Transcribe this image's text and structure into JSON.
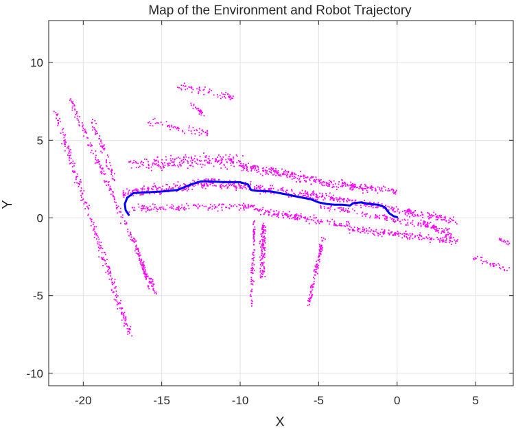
{
  "chart_data": {
    "type": "scatter",
    "title": "Map of the Environment and Robot Trajectory",
    "xlabel": "X",
    "ylabel": "Y",
    "xlim": [
      -22.2,
      7.4
    ],
    "ylim": [
      -10.8,
      12.7
    ],
    "grid": true,
    "legend": "none",
    "xticks": [
      -20,
      -15,
      -10,
      -5,
      0,
      5
    ],
    "yticks": [
      -10,
      -5,
      0,
      5,
      10
    ],
    "xtick_labels": [
      "-20",
      "-15",
      "-10",
      "-5",
      "0",
      "5"
    ],
    "ytick_labels": [
      "-10",
      "-5",
      "0",
      "5",
      "10"
    ],
    "colors": {
      "map_points": "#ff00ff",
      "trajectory": "#0000ff",
      "grid": "#e3e3e3",
      "axes": "#262626"
    },
    "map_segments": [
      {
        "from": [
          -21.8,
          6.8
        ],
        "to": [
          -17.0,
          -7.6
        ],
        "spread": 0.45,
        "count": 260
      },
      {
        "from": [
          -20.8,
          7.6
        ],
        "to": [
          -15.3,
          -5.0
        ],
        "spread": 0.35,
        "count": 200
      },
      {
        "from": [
          -19.5,
          6.5
        ],
        "to": [
          -18.0,
          2.5
        ],
        "spread": 0.4,
        "count": 60
      },
      {
        "from": [
          -16.8,
          -1.3
        ],
        "to": [
          -15.8,
          -4.5
        ],
        "spread": 0.25,
        "count": 60
      },
      {
        "from": [
          -17.5,
          1.6
        ],
        "to": [
          -12.0,
          2.2
        ],
        "spread": 0.5,
        "count": 180
      },
      {
        "from": [
          -12.0,
          2.3
        ],
        "to": [
          -4.0,
          1.3
        ],
        "spread": 0.45,
        "count": 240
      },
      {
        "from": [
          -4.0,
          1.3
        ],
        "to": [
          3.8,
          -0.2
        ],
        "spread": 0.35,
        "count": 220
      },
      {
        "from": [
          -17.0,
          3.5
        ],
        "to": [
          -10.0,
          3.7
        ],
        "spread": 0.6,
        "count": 220
      },
      {
        "from": [
          -10.0,
          3.4
        ],
        "to": [
          -5.0,
          2.4
        ],
        "spread": 0.45,
        "count": 180
      },
      {
        "from": [
          -5.0,
          2.3
        ],
        "to": [
          0.0,
          1.7
        ],
        "spread": 0.4,
        "count": 150
      },
      {
        "from": [
          -17.0,
          0.6
        ],
        "to": [
          -9.0,
          0.8
        ],
        "spread": 0.35,
        "count": 150
      },
      {
        "from": [
          -9.0,
          0.5
        ],
        "to": [
          -3.0,
          -0.5
        ],
        "spread": 0.35,
        "count": 160
      },
      {
        "from": [
          -3.0,
          -0.7
        ],
        "to": [
          3.8,
          -1.5
        ],
        "spread": 0.35,
        "count": 180
      },
      {
        "from": [
          -5.0,
          0.8
        ],
        "to": [
          3.5,
          -0.8
        ],
        "spread": 0.3,
        "count": 140
      },
      {
        "from": [
          -8.5,
          -0.3
        ],
        "to": [
          -8.6,
          -3.8
        ],
        "spread": 0.4,
        "count": 120
      },
      {
        "from": [
          -9.1,
          -0.2
        ],
        "to": [
          -9.3,
          -5.8
        ],
        "spread": 0.25,
        "count": 80
      },
      {
        "from": [
          -4.7,
          -1.2
        ],
        "to": [
          -5.7,
          -5.8
        ],
        "spread": 0.3,
        "count": 100
      },
      {
        "from": [
          -15.8,
          6.2
        ],
        "to": [
          -12.0,
          5.4
        ],
        "spread": 0.35,
        "count": 60
      },
      {
        "from": [
          -14.0,
          8.5
        ],
        "to": [
          -10.5,
          7.8
        ],
        "spread": 0.4,
        "count": 60
      },
      {
        "from": [
          -13.2,
          7.3
        ],
        "to": [
          -12.3,
          6.7
        ],
        "spread": 0.3,
        "count": 25
      },
      {
        "from": [
          1.5,
          -0.2
        ],
        "to": [
          3.5,
          -1.2
        ],
        "spread": 0.3,
        "count": 50
      },
      {
        "from": [
          4.8,
          -2.5
        ],
        "to": [
          7.2,
          -3.4
        ],
        "spread": 0.25,
        "count": 35
      },
      {
        "from": [
          6.5,
          -1.4
        ],
        "to": [
          7.3,
          -1.7
        ],
        "spread": 0.2,
        "count": 15
      }
    ],
    "trajectory": [
      [
        -17.1,
        0.2
      ],
      [
        -17.3,
        0.5
      ],
      [
        -17.35,
        0.9
      ],
      [
        -17.2,
        1.3
      ],
      [
        -16.8,
        1.6
      ],
      [
        -16.0,
        1.65
      ],
      [
        -15.0,
        1.7
      ],
      [
        -14.0,
        1.8
      ],
      [
        -13.5,
        2.0
      ],
      [
        -13.0,
        2.2
      ],
      [
        -12.5,
        2.35
      ],
      [
        -12.0,
        2.35
      ],
      [
        -11.0,
        2.3
      ],
      [
        -10.5,
        2.3
      ],
      [
        -10.0,
        2.3
      ],
      [
        -9.5,
        2.15
      ],
      [
        -9.3,
        1.8
      ],
      [
        -9.0,
        1.75
      ],
      [
        -8.0,
        1.7
      ],
      [
        -7.0,
        1.5
      ],
      [
        -6.0,
        1.3
      ],
      [
        -5.5,
        1.2
      ],
      [
        -5.0,
        1.0
      ],
      [
        -4.5,
        0.9
      ],
      [
        -4.0,
        0.85
      ],
      [
        -3.5,
        0.85
      ],
      [
        -3.0,
        0.8
      ],
      [
        -2.8,
        0.95
      ],
      [
        -2.3,
        1.0
      ],
      [
        -1.8,
        0.9
      ],
      [
        -1.2,
        0.85
      ],
      [
        -0.8,
        0.7
      ],
      [
        -0.5,
        0.3
      ],
      [
        -0.2,
        0.1
      ],
      [
        0.0,
        0.05
      ]
    ]
  }
}
